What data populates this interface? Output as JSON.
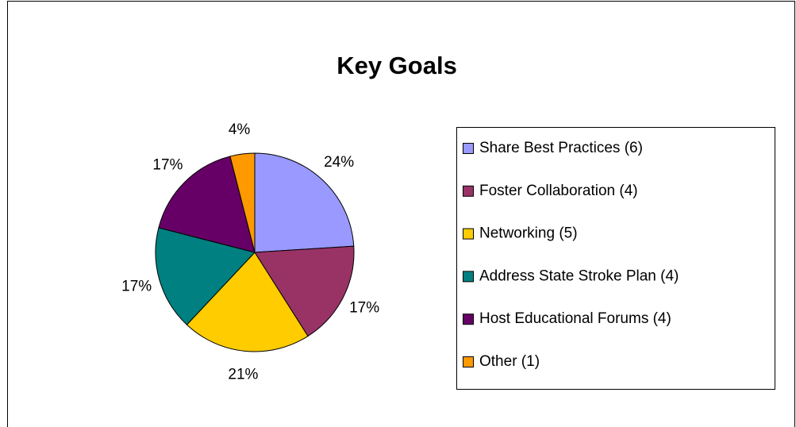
{
  "chart_data": {
    "type": "pie",
    "title": "Key Goals",
    "categories": [
      "Share Best Practices (6)",
      "Foster Collaboration (4)",
      "Networking (5)",
      "Address State Stroke Plan (4)",
      "Host Educational Forums (4)",
      "Other (1)"
    ],
    "values": [
      24,
      17,
      21,
      17,
      17,
      4
    ],
    "value_labels": [
      "24%",
      "17%",
      "21%",
      "17%",
      "17%",
      "4%"
    ],
    "colors": [
      "#9999ff",
      "#993366",
      "#ffcc00",
      "#008080",
      "#660066",
      "#ff9900"
    ],
    "legend": "right"
  }
}
